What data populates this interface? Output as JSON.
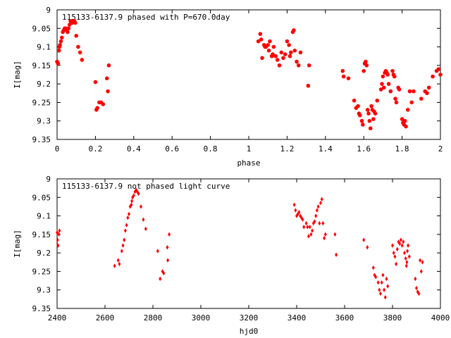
{
  "chart_data": [
    {
      "type": "scatter",
      "title": "115133-6137.9 phased with P=670.0day",
      "xlabel": "phase",
      "ylabel": "I[mag]",
      "xlim": [
        0,
        2
      ],
      "ylim": [
        9.35,
        9
      ],
      "y_inverted": true,
      "xticks": [
        "0",
        "0.2",
        "0.4",
        "0.6",
        "0.8",
        "1",
        "1.2",
        "1.4",
        "1.6",
        "1.8",
        "2"
      ],
      "xtick_values": [
        0,
        0.2,
        0.4,
        0.6,
        0.8,
        1,
        1.2,
        1.4,
        1.6,
        1.8,
        2
      ],
      "yticks": [
        "9",
        "9.05",
        "9.1",
        "9.15",
        "9.2",
        "9.25",
        "9.3",
        "9.35"
      ],
      "ytick_values": [
        9,
        9.05,
        9.1,
        9.15,
        9.2,
        9.25,
        9.3,
        9.35
      ],
      "marker_color": "#ff0000",
      "marker": "filled-circle",
      "grid": false,
      "points": [
        [
          0.0,
          9.14
        ],
        [
          0.005,
          9.145
        ],
        [
          0.01,
          9.11
        ],
        [
          0.012,
          9.1
        ],
        [
          0.015,
          9.095
        ],
        [
          0.02,
          9.085
        ],
        [
          0.025,
          9.075
        ],
        [
          0.03,
          9.06
        ],
        [
          0.035,
          9.055
        ],
        [
          0.04,
          9.05
        ],
        [
          0.045,
          9.05
        ],
        [
          0.05,
          9.055
        ],
        [
          0.055,
          9.06
        ],
        [
          0.06,
          9.05
        ],
        [
          0.065,
          9.04
        ],
        [
          0.07,
          9.03
        ],
        [
          0.075,
          9.035
        ],
        [
          0.08,
          9.035
        ],
        [
          0.085,
          9.03
        ],
        [
          0.09,
          9.03
        ],
        [
          0.095,
          9.035
        ],
        [
          0.1,
          9.07
        ],
        [
          0.11,
          9.1
        ],
        [
          0.12,
          9.115
        ],
        [
          0.13,
          9.135
        ],
        [
          0.2,
          9.195
        ],
        [
          0.205,
          9.27
        ],
        [
          0.21,
          9.265
        ],
        [
          0.22,
          9.25
        ],
        [
          0.23,
          9.25
        ],
        [
          0.24,
          9.255
        ],
        [
          0.26,
          9.185
        ],
        [
          0.265,
          9.22
        ],
        [
          0.27,
          9.15
        ],
        [
          1.05,
          9.085
        ],
        [
          1.06,
          9.065
        ],
        [
          1.065,
          9.08
        ],
        [
          1.07,
          9.13
        ],
        [
          1.08,
          9.095
        ],
        [
          1.085,
          9.1
        ],
        [
          1.09,
          9.1
        ],
        [
          1.1,
          9.095
        ],
        [
          1.105,
          9.11
        ],
        [
          1.11,
          9.085
        ],
        [
          1.12,
          9.125
        ],
        [
          1.125,
          9.12
        ],
        [
          1.13,
          9.1
        ],
        [
          1.14,
          9.125
        ],
        [
          1.15,
          9.135
        ],
        [
          1.16,
          9.15
        ],
        [
          1.17,
          9.115
        ],
        [
          1.18,
          9.13
        ],
        [
          1.19,
          9.12
        ],
        [
          1.2,
          9.085
        ],
        [
          1.21,
          9.095
        ],
        [
          1.215,
          9.125
        ],
        [
          1.22,
          9.115
        ],
        [
          1.23,
          9.06
        ],
        [
          1.235,
          9.055
        ],
        [
          1.24,
          9.11
        ],
        [
          1.25,
          9.14
        ],
        [
          1.26,
          9.15
        ],
        [
          1.27,
          9.115
        ],
        [
          1.31,
          9.205
        ],
        [
          1.315,
          9.15
        ],
        [
          1.49,
          9.165
        ],
        [
          1.495,
          9.18
        ],
        [
          1.52,
          9.185
        ],
        [
          1.55,
          9.245
        ],
        [
          1.56,
          9.265
        ],
        [
          1.57,
          9.26
        ],
        [
          1.575,
          9.28
        ],
        [
          1.58,
          9.285
        ],
        [
          1.59,
          9.3
        ],
        [
          1.595,
          9.31
        ],
        [
          1.6,
          9.165
        ],
        [
          1.605,
          9.145
        ],
        [
          1.61,
          9.14
        ],
        [
          1.615,
          9.15
        ],
        [
          1.62,
          9.27
        ],
        [
          1.625,
          9.28
        ],
        [
          1.63,
          9.3
        ],
        [
          1.635,
          9.32
        ],
        [
          1.64,
          9.26
        ],
        [
          1.645,
          9.27
        ],
        [
          1.65,
          9.295
        ],
        [
          1.655,
          9.275
        ],
        [
          1.66,
          9.28
        ],
        [
          1.67,
          9.245
        ],
        [
          1.69,
          9.215
        ],
        [
          1.695,
          9.2
        ],
        [
          1.7,
          9.18
        ],
        [
          1.705,
          9.21
        ],
        [
          1.71,
          9.17
        ],
        [
          1.715,
          9.165
        ],
        [
          1.72,
          9.17
        ],
        [
          1.725,
          9.175
        ],
        [
          1.73,
          9.2
        ],
        [
          1.74,
          9.22
        ],
        [
          1.75,
          9.165
        ],
        [
          1.755,
          9.175
        ],
        [
          1.76,
          9.18
        ],
        [
          1.765,
          9.24
        ],
        [
          1.77,
          9.25
        ],
        [
          1.78,
          9.21
        ],
        [
          1.785,
          9.215
        ],
        [
          1.8,
          9.295
        ],
        [
          1.805,
          9.305
        ],
        [
          1.81,
          9.31
        ],
        [
          1.815,
          9.3
        ],
        [
          1.82,
          9.315
        ],
        [
          1.83,
          9.27
        ],
        [
          1.84,
          9.22
        ],
        [
          1.85,
          9.25
        ],
        [
          1.86,
          9.22
        ],
        [
          1.9,
          9.24
        ],
        [
          1.92,
          9.22
        ],
        [
          1.93,
          9.225
        ],
        [
          1.94,
          9.21
        ],
        [
          1.96,
          9.18
        ],
        [
          1.98,
          9.165
        ],
        [
          1.99,
          9.16
        ],
        [
          2.0,
          9.175
        ]
      ]
    },
    {
      "type": "scatter",
      "title": "115133-6137.9 not phased light curve",
      "xlabel": "hjd0",
      "ylabel": "I[mag]",
      "xlim": [
        2400,
        4000
      ],
      "ylim": [
        9.35,
        9
      ],
      "y_inverted": true,
      "xticks": [
        "2400",
        "2600",
        "2800",
        "3000",
        "3200",
        "3400",
        "3600",
        "3800",
        "4000"
      ],
      "xtick_values": [
        2400,
        2600,
        2800,
        3000,
        3200,
        3400,
        3600,
        3800,
        4000
      ],
      "yticks": [
        "9",
        "9.05",
        "9.1",
        "9.15",
        "9.2",
        "9.25",
        "9.3",
        "9.35"
      ],
      "ytick_values": [
        9,
        9.05,
        9.1,
        9.15,
        9.2,
        9.25,
        9.3,
        9.35
      ],
      "marker_color": "#ff0000",
      "marker": "diamond",
      "grid": false,
      "points": [
        [
          2400,
          9.145
        ],
        [
          2402,
          9.165
        ],
        [
          2404,
          9.18
        ],
        [
          2407,
          9.15
        ],
        [
          2410,
          9.14
        ],
        [
          2640,
          9.235
        ],
        [
          2655,
          9.22
        ],
        [
          2660,
          9.23
        ],
        [
          2670,
          9.195
        ],
        [
          2675,
          9.18
        ],
        [
          2680,
          9.165
        ],
        [
          2685,
          9.14
        ],
        [
          2690,
          9.125
        ],
        [
          2695,
          9.105
        ],
        [
          2700,
          9.095
        ],
        [
          2705,
          9.075
        ],
        [
          2710,
          9.07
        ],
        [
          2712,
          9.06
        ],
        [
          2715,
          9.05
        ],
        [
          2720,
          9.045
        ],
        [
          2725,
          9.035
        ],
        [
          2730,
          9.03
        ],
        [
          2735,
          9.035
        ],
        [
          2740,
          9.04
        ],
        [
          2750,
          9.075
        ],
        [
          2760,
          9.11
        ],
        [
          2770,
          9.135
        ],
        [
          2820,
          9.195
        ],
        [
          2830,
          9.27
        ],
        [
          2840,
          9.25
        ],
        [
          2845,
          9.255
        ],
        [
          2860,
          9.185
        ],
        [
          2862,
          9.22
        ],
        [
          2868,
          9.15
        ],
        [
          3390,
          9.07
        ],
        [
          3395,
          9.085
        ],
        [
          3400,
          9.1
        ],
        [
          3405,
          9.095
        ],
        [
          3410,
          9.09
        ],
        [
          3415,
          9.1
        ],
        [
          3420,
          9.105
        ],
        [
          3425,
          9.11
        ],
        [
          3430,
          9.13
        ],
        [
          3440,
          9.12
        ],
        [
          3445,
          9.13
        ],
        [
          3450,
          9.155
        ],
        [
          3455,
          9.13
        ],
        [
          3460,
          9.15
        ],
        [
          3465,
          9.14
        ],
        [
          3470,
          9.12
        ],
        [
          3475,
          9.115
        ],
        [
          3480,
          9.1
        ],
        [
          3485,
          9.085
        ],
        [
          3490,
          9.075
        ],
        [
          3495,
          9.12
        ],
        [
          3500,
          9.065
        ],
        [
          3505,
          9.055
        ],
        [
          3510,
          9.12
        ],
        [
          3515,
          9.16
        ],
        [
          3520,
          9.15
        ],
        [
          3560,
          9.15
        ],
        [
          3565,
          9.205
        ],
        [
          3680,
          9.165
        ],
        [
          3695,
          9.185
        ],
        [
          3720,
          9.24
        ],
        [
          3725,
          9.26
        ],
        [
          3730,
          9.265
        ],
        [
          3740,
          9.28
        ],
        [
          3745,
          9.3
        ],
        [
          3750,
          9.31
        ],
        [
          3755,
          9.28
        ],
        [
          3760,
          9.26
        ],
        [
          3765,
          9.3
        ],
        [
          3770,
          9.32
        ],
        [
          3775,
          9.27
        ],
        [
          3780,
          9.29
        ],
        [
          3800,
          9.18
        ],
        [
          3805,
          9.2
        ],
        [
          3810,
          9.21
        ],
        [
          3815,
          9.23
        ],
        [
          3820,
          9.19
        ],
        [
          3825,
          9.17
        ],
        [
          3830,
          9.175
        ],
        [
          3835,
          9.165
        ],
        [
          3840,
          9.18
        ],
        [
          3845,
          9.17
        ],
        [
          3850,
          9.2
        ],
        [
          3855,
          9.215
        ],
        [
          3858,
          9.235
        ],
        [
          3860,
          9.225
        ],
        [
          3862,
          9.195
        ],
        [
          3865,
          9.18
        ],
        [
          3870,
          9.21
        ],
        [
          3895,
          9.27
        ],
        [
          3900,
          9.295
        ],
        [
          3905,
          9.305
        ],
        [
          3910,
          9.31
        ],
        [
          3915,
          9.22
        ],
        [
          3920,
          9.25
        ],
        [
          3925,
          9.225
        ]
      ]
    }
  ]
}
